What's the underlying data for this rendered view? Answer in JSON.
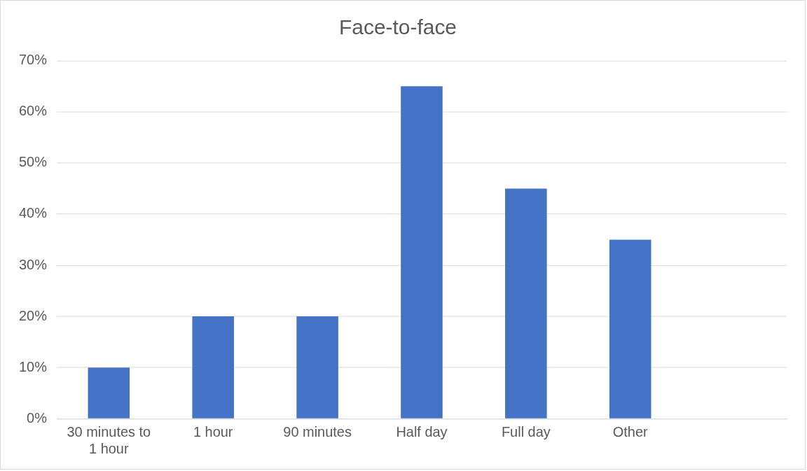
{
  "chart_data": {
    "type": "bar",
    "title": "Face-to-face",
    "categories": [
      "30 minutes to 1 hour",
      "1 hour",
      "90 minutes",
      "Half day",
      "Full day",
      "Other",
      null
    ],
    "values": [
      10,
      20,
      20,
      65,
      45,
      35,
      null
    ],
    "color": "#4472c4",
    "ylim": [
      0,
      70
    ],
    "yticks": [
      {
        "value": 0,
        "label": "0%"
      },
      {
        "value": 10,
        "label": "10%"
      },
      {
        "value": 20,
        "label": "20%"
      },
      {
        "value": 30,
        "label": "30%"
      },
      {
        "value": 40,
        "label": "40%"
      },
      {
        "value": 50,
        "label": "50%"
      },
      {
        "value": 60,
        "label": "60%"
      },
      {
        "value": 70,
        "label": "70%"
      }
    ],
    "grid": "y",
    "legend": false
  }
}
